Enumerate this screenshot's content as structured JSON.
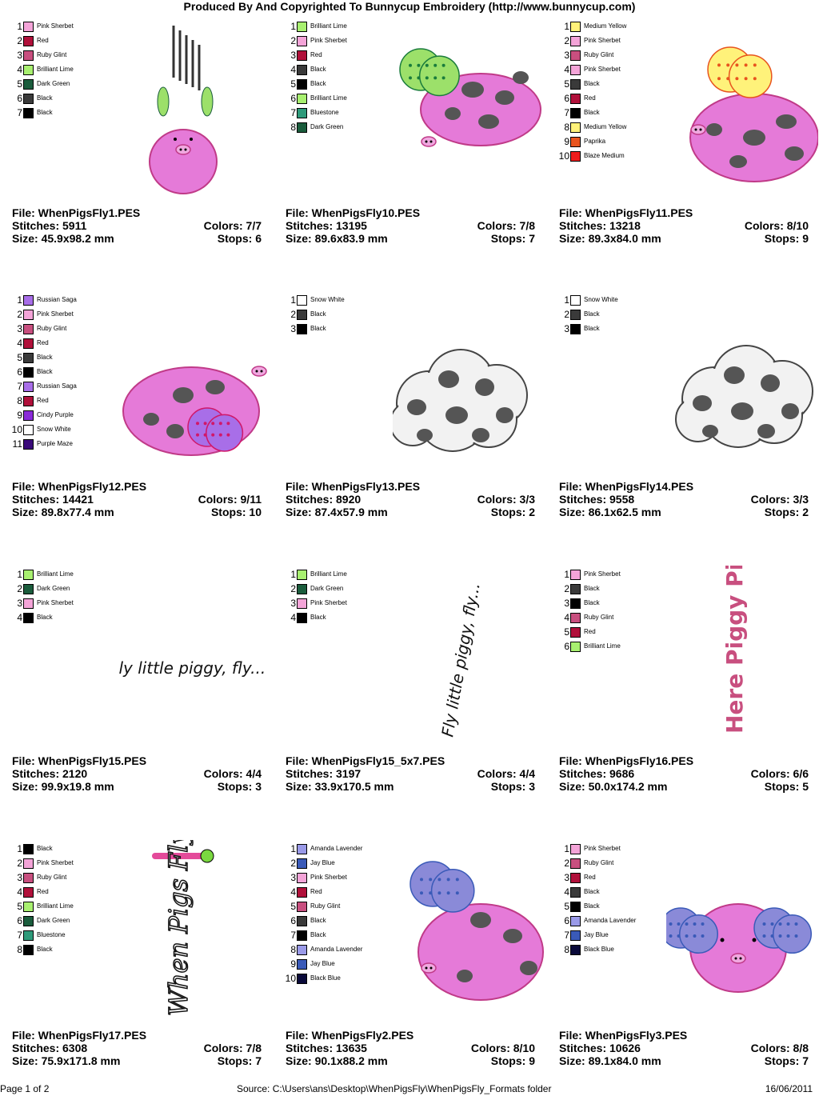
{
  "header": {
    "title": "Produced By And Copyrighted To Bunnycup Embroidery (http://www.bunnycup.com)"
  },
  "labels": {
    "file": "File: ",
    "stitches": "Stitches: ",
    "size": "Size: ",
    "colors": "Colors: ",
    "stops": "Stops: "
  },
  "designs": [
    {
      "file": "WhenPigsFly1.PES",
      "stitches": "5911",
      "size": "45.9x98.2 mm",
      "colors": "7/7",
      "stops": "6",
      "art": "pig-falling",
      "palette": [
        {
          "name": "Pink Sherbet",
          "color": "#f4a4d8"
        },
        {
          "name": "Red",
          "color": "#b0103a"
        },
        {
          "name": "Ruby Glint",
          "color": "#c84f7f"
        },
        {
          "name": "Brilliant Lime",
          "color": "#a8f070"
        },
        {
          "name": "Dark Green",
          "color": "#1a5c3c"
        },
        {
          "name": "Black",
          "color": "#3a3a3a"
        },
        {
          "name": "Black",
          "color": "#000000"
        }
      ]
    },
    {
      "file": "WhenPigsFly10.PES",
      "stitches": "13195",
      "size": "89.6x83.9 mm",
      "colors": "7/8",
      "stops": "7",
      "art": "pig-green-wings",
      "palette": [
        {
          "name": "Brilliant Lime",
          "color": "#a8f070"
        },
        {
          "name": "Pink Sherbet",
          "color": "#f4a4d8"
        },
        {
          "name": "Red",
          "color": "#b0103a"
        },
        {
          "name": "Black",
          "color": "#3a3a3a"
        },
        {
          "name": "Black",
          "color": "#000000"
        },
        {
          "name": "Brilliant Lime",
          "color": "#a8f070"
        },
        {
          "name": "Bluestone",
          "color": "#2e9a7a"
        },
        {
          "name": "Dark Green",
          "color": "#1a5c3c"
        }
      ]
    },
    {
      "file": "WhenPigsFly11.PES",
      "stitches": "13218",
      "size": "89.3x84.0 mm",
      "colors": "8/10",
      "stops": "9",
      "art": "pig-yellow-wings",
      "palette": [
        {
          "name": "Medium Yellow",
          "color": "#fff27a"
        },
        {
          "name": "Pink Sherbet",
          "color": "#f4a4d8"
        },
        {
          "name": "Ruby Glint",
          "color": "#c84f7f"
        },
        {
          "name": "Pink Sherbet",
          "color": "#f4a4d8"
        },
        {
          "name": "Black",
          "color": "#3a3a3a"
        },
        {
          "name": "Red",
          "color": "#b0103a"
        },
        {
          "name": "Black",
          "color": "#000000"
        },
        {
          "name": "Medium Yellow",
          "color": "#fff27a"
        },
        {
          "name": "Paprika",
          "color": "#e8541e"
        },
        {
          "name": "Blaze Medium",
          "color": "#ee1c1c"
        }
      ]
    },
    {
      "file": "WhenPigsFly12.PES",
      "stitches": "14421",
      "size": "89.8x77.4 mm",
      "colors": "9/11",
      "stops": "10",
      "art": "pig-purple-wings",
      "palette": [
        {
          "name": "Russian Saga",
          "color": "#a86ee8"
        },
        {
          "name": "Pink Sherbet",
          "color": "#f4a4d8"
        },
        {
          "name": "Ruby Glint",
          "color": "#c84f7f"
        },
        {
          "name": "Red",
          "color": "#b0103a"
        },
        {
          "name": "Black",
          "color": "#3a3a3a"
        },
        {
          "name": "Black",
          "color": "#000000"
        },
        {
          "name": "Russian Saga",
          "color": "#a86ee8"
        },
        {
          "name": "Red",
          "color": "#b0103a"
        },
        {
          "name": "Cindy Purple",
          "color": "#8a2ad8"
        },
        {
          "name": "Snow White",
          "color": "#ffffff"
        },
        {
          "name": "Purple Maze",
          "color": "#3a0a7a"
        }
      ]
    },
    {
      "file": "WhenPigsFly13.PES",
      "stitches": "8920",
      "size": "87.4x57.9 mm",
      "colors": "3/3",
      "stops": "2",
      "art": "cloud",
      "palette": [
        {
          "name": "Snow White",
          "color": "#ffffff"
        },
        {
          "name": "Black",
          "color": "#3a3a3a"
        },
        {
          "name": "Black",
          "color": "#000000"
        }
      ]
    },
    {
      "file": "WhenPigsFly14.PES",
      "stitches": "9558",
      "size": "86.1x62.5 mm",
      "colors": "3/3",
      "stops": "2",
      "art": "cloud2",
      "palette": [
        {
          "name": "Snow White",
          "color": "#ffffff"
        },
        {
          "name": "Black",
          "color": "#3a3a3a"
        },
        {
          "name": "Black",
          "color": "#000000"
        }
      ]
    },
    {
      "file": "WhenPigsFly15.PES",
      "stitches": "2120",
      "size": "99.9x19.8 mm",
      "colors": "4/4",
      "stops": "3",
      "art": "text-h",
      "text": "Fly little piggy, fly...",
      "palette": [
        {
          "name": "Brilliant Lime",
          "color": "#a8f070"
        },
        {
          "name": "Dark Green",
          "color": "#1a5c3c"
        },
        {
          "name": "Pink Sherbet",
          "color": "#f4a4d8"
        },
        {
          "name": "Black",
          "color": "#000000"
        }
      ]
    },
    {
      "file": "WhenPigsFly15_5x7.PES",
      "stitches": "3197",
      "size": "33.9x170.5 mm",
      "colors": "4/4",
      "stops": "3",
      "art": "text-v",
      "text": "Fly little piggy, fly...",
      "palette": [
        {
          "name": "Brilliant Lime",
          "color": "#a8f070"
        },
        {
          "name": "Dark Green",
          "color": "#1a5c3c"
        },
        {
          "name": "Pink Sherbet",
          "color": "#f4a4d8"
        },
        {
          "name": "Black",
          "color": "#000000"
        }
      ]
    },
    {
      "file": "WhenPigsFly16.PES",
      "stitches": "9686",
      "size": "50.0x174.2 mm",
      "colors": "6/6",
      "stops": "5",
      "art": "text-v2",
      "text": "Here Piggy Piggy",
      "palette": [
        {
          "name": "Pink Sherbet",
          "color": "#f4a4d8"
        },
        {
          "name": "Black",
          "color": "#3a3a3a"
        },
        {
          "name": "Black",
          "color": "#000000"
        },
        {
          "name": "Ruby Glint",
          "color": "#c84f7f"
        },
        {
          "name": "Red",
          "color": "#b0103a"
        },
        {
          "name": "Brilliant Lime",
          "color": "#a8f070"
        }
      ]
    },
    {
      "file": "WhenPigsFly17.PES",
      "stitches": "6308",
      "size": "75.9x171.8 mm",
      "colors": "7/8",
      "stops": "7",
      "art": "text-v3",
      "text": "When Pigs Fly",
      "palette": [
        {
          "name": "Black",
          "color": "#000000"
        },
        {
          "name": "Pink Sherbet",
          "color": "#f4a4d8"
        },
        {
          "name": "Ruby Glint",
          "color": "#c84f7f"
        },
        {
          "name": "Red",
          "color": "#b0103a"
        },
        {
          "name": "Brilliant Lime",
          "color": "#a8f070"
        },
        {
          "name": "Dark Green",
          "color": "#1a5c3c"
        },
        {
          "name": "Bluestone",
          "color": "#2e9a7a"
        },
        {
          "name": "Black",
          "color": "#000000"
        }
      ]
    },
    {
      "file": "WhenPigsFly2.PES",
      "stitches": "13635",
      "size": "90.1x88.2 mm",
      "colors": "8/10",
      "stops": "9",
      "art": "pig-blue-wings",
      "palette": [
        {
          "name": "Amanda Lavender",
          "color": "#9a9ae8"
        },
        {
          "name": "Jay Blue",
          "color": "#3a5ab8"
        },
        {
          "name": "Pink Sherbet",
          "color": "#f4a4d8"
        },
        {
          "name": "Red",
          "color": "#b0103a"
        },
        {
          "name": "Ruby Glint",
          "color": "#c84f7f"
        },
        {
          "name": "Black",
          "color": "#3a3a3a"
        },
        {
          "name": "Black",
          "color": "#000000"
        },
        {
          "name": "Amanda Lavender",
          "color": "#9a9ae8"
        },
        {
          "name": "Jay Blue",
          "color": "#3a5ab8"
        },
        {
          "name": "Black Blue",
          "color": "#0a0a3a"
        }
      ]
    },
    {
      "file": "WhenPigsFly3.PES",
      "stitches": "10626",
      "size": "89.1x84.0 mm",
      "colors": "8/8",
      "stops": "7",
      "art": "pig-front",
      "palette": [
        {
          "name": "Pink Sherbet",
          "color": "#f4a4d8"
        },
        {
          "name": "Ruby Glint",
          "color": "#c84f7f"
        },
        {
          "name": "Red",
          "color": "#b0103a"
        },
        {
          "name": "Black",
          "color": "#3a3a3a"
        },
        {
          "name": "Black",
          "color": "#000000"
        },
        {
          "name": "Amanda Lavender",
          "color": "#9a9ae8"
        },
        {
          "name": "Jay Blue",
          "color": "#3a5ab8"
        },
        {
          "name": "Black Blue",
          "color": "#0a0a3a"
        }
      ]
    }
  ],
  "footer": {
    "page": "Page 1 of 2",
    "source": "Source: C:\\Users\\ans\\Desktop\\WhenPigsFly\\WhenPigsFly_Formats folder",
    "date": "16/06/2011"
  }
}
